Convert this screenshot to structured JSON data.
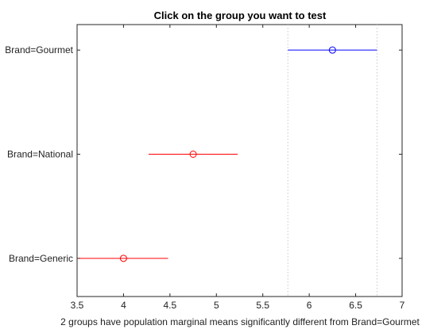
{
  "chart_data": {
    "type": "scatter",
    "title": "Click on the group you want to test",
    "xlabel": "2 groups have population marginal means significantly different from Brand=Gourmet",
    "xlim": [
      3.5,
      7
    ],
    "xticks": [
      "3.5",
      "4",
      "4.5",
      "5",
      "5.5",
      "6",
      "6.5",
      "7"
    ],
    "grid": false,
    "groups": [
      {
        "label": "Brand=Gourmet",
        "mean": 6.25,
        "lower": 5.77,
        "upper": 6.73,
        "color": "#0000ff",
        "selected": true
      },
      {
        "label": "Brand=National",
        "mean": 4.75,
        "lower": 4.27,
        "upper": 5.23,
        "color": "#ff0000",
        "selected": false
      },
      {
        "label": "Brand=Generic",
        "mean": 4.0,
        "lower": 3.52,
        "upper": 4.48,
        "color": "#ff0000",
        "selected": false
      }
    ],
    "reference_lines": [
      5.77,
      6.73
    ]
  }
}
